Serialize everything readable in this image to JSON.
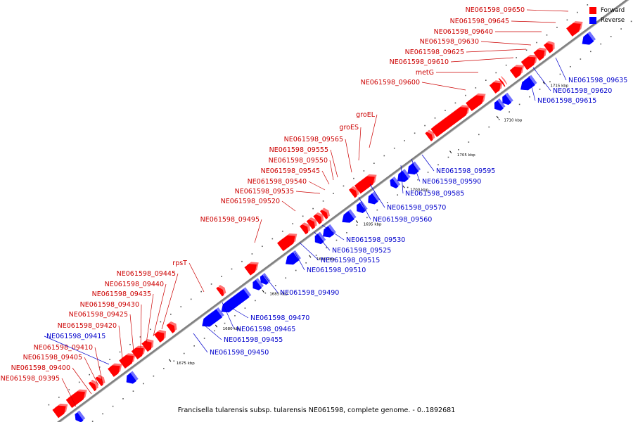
{
  "caption": "Francisella tularensis subsp. tularensis NE061598, complete genome. - 0..1892681",
  "legend": [
    {
      "label": "Forward",
      "color": "#ff0000"
    },
    {
      "label": "Reverse",
      "color": "#0000ff"
    }
  ],
  "colors": {
    "forward": "#ff0000",
    "reverse": "#0000ff",
    "backbone": "#808080",
    "forward_label": "#cc0000",
    "reverse_label": "#0000cc"
  },
  "ticks": [
    "1675 kbp",
    "1680 kbp",
    "1685 kbp",
    "1690 kbp",
    "1695 kbp",
    "1700 kbp",
    "1705 kbp",
    "1710 kbp",
    "1715 kbp"
  ],
  "forward_labels": [
    "NE061598_09395",
    "NE061598_09400",
    "NE061598_09405",
    "NE061598_09410",
    "NE061598_09420",
    "NE061598_09425",
    "NE061598_09430",
    "NE061598_09435",
    "NE061598_09440",
    "NE061598_09445",
    "rpsT",
    "NE061598_09495",
    "NE061598_09520",
    "NE061598_09535",
    "NE061598_09540",
    "NE061598_09545",
    "NE061598_09550",
    "NE061598_09555",
    "NE061598_09565",
    "groES",
    "groEL",
    "NE061598_09600",
    "metG",
    "NE061598_09610",
    "NE061598_09625",
    "NE061598_09630",
    "NE061598_09640",
    "NE061598_09645",
    "NE061598_09650"
  ],
  "reverse_labels": [
    "NE061598_09415",
    "NE061598_09450",
    "NE061598_09455",
    "NE061598_09465",
    "NE061598_09470",
    "NE061598_09490",
    "NE061598_09510",
    "NE061598_09515",
    "NE061598_09525",
    "NE061598_09530",
    "NE061598_09560",
    "NE061598_09570",
    "NE061598_09585",
    "NE061598_09590",
    "NE061598_09595",
    "NE061598_09615",
    "NE061598_09620",
    "NE061598_09635"
  ]
}
